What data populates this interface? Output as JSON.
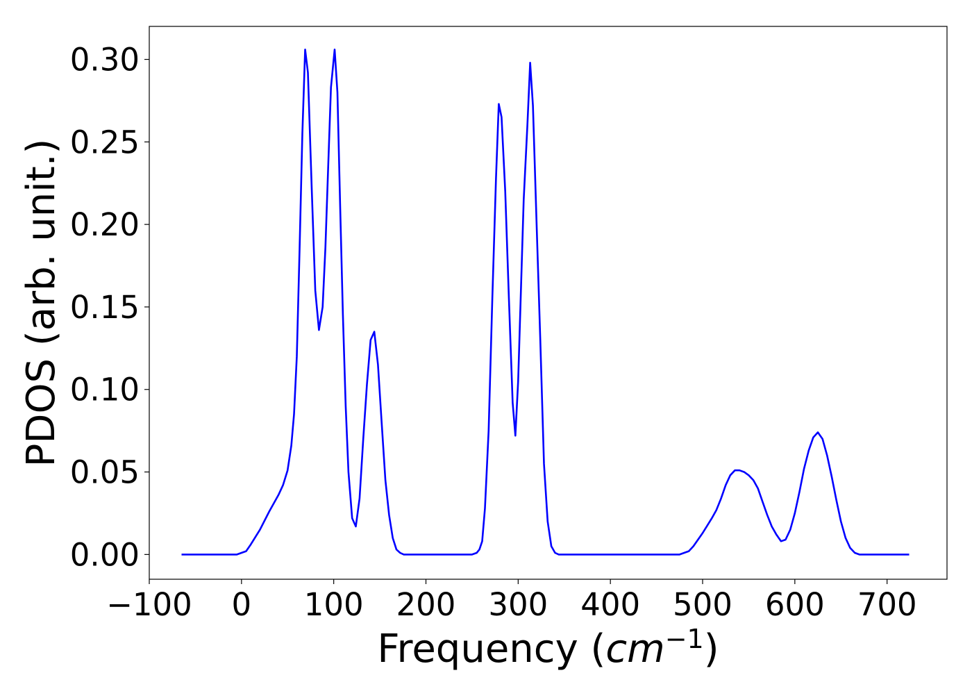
{
  "chart_data": {
    "type": "line",
    "title": "",
    "xlabel_prefix": "Frequency (",
    "xlabel_var": "cm",
    "xlabel_sup": "−1",
    "xlabel_suffix": ")",
    "ylabel": "PDOS (arb. unit.)",
    "xlim": [
      -100,
      765
    ],
    "ylim": [
      -0.015,
      0.32
    ],
    "grid": false,
    "legend": "none",
    "xticks": [
      -100,
      0,
      100,
      200,
      300,
      400,
      500,
      600,
      700
    ],
    "xtick_labels": [
      "−100",
      "0",
      "100",
      "200",
      "300",
      "400",
      "500",
      "600",
      "700"
    ],
    "yticks": [
      0.0,
      0.05,
      0.1,
      0.15,
      0.2,
      0.25,
      0.3
    ],
    "ytick_labels": [
      "0.00",
      "0.05",
      "0.10",
      "0.15",
      "0.20",
      "0.25",
      "0.30"
    ],
    "series": [
      {
        "color": "#0000ff",
        "x": [
          -65,
          -40,
          -20,
          -5,
          0,
          5,
          10,
          20,
          30,
          40,
          45,
          50,
          54,
          57,
          60,
          63,
          66,
          69,
          72,
          76,
          80,
          84,
          88,
          91,
          94,
          97,
          101,
          104,
          107,
          110,
          113,
          116,
          120,
          124,
          128,
          132,
          136,
          140,
          144,
          148,
          152,
          156,
          160,
          164,
          168,
          172,
          176,
          180,
          190,
          200,
          220,
          240,
          250,
          255,
          258,
          261,
          264,
          268,
          272,
          276,
          279,
          282,
          286,
          290,
          294,
          297,
          300,
          303,
          306,
          310,
          313,
          316,
          320,
          324,
          328,
          332,
          336,
          340,
          344,
          350,
          400,
          450,
          470,
          475,
          480,
          485,
          490,
          500,
          510,
          515,
          520,
          525,
          530,
          535,
          540,
          545,
          550,
          555,
          560,
          565,
          570,
          575,
          580,
          585,
          590,
          595,
          600,
          605,
          610,
          615,
          620,
          625,
          630,
          635,
          640,
          645,
          650,
          655,
          660,
          665,
          670,
          675,
          680,
          700,
          724
        ],
        "y": [
          0.0,
          0.0,
          0.0,
          0.0,
          0.001,
          0.002,
          0.006,
          0.015,
          0.026,
          0.036,
          0.042,
          0.051,
          0.066,
          0.085,
          0.12,
          0.185,
          0.255,
          0.306,
          0.292,
          0.224,
          0.16,
          0.136,
          0.15,
          0.186,
          0.235,
          0.283,
          0.306,
          0.28,
          0.21,
          0.145,
          0.09,
          0.05,
          0.022,
          0.017,
          0.034,
          0.07,
          0.103,
          0.13,
          0.135,
          0.115,
          0.08,
          0.045,
          0.024,
          0.01,
          0.003,
          0.001,
          0.0,
          0.0,
          0.0,
          0.0,
          0.0,
          0.0,
          0.0,
          0.001,
          0.003,
          0.008,
          0.028,
          0.075,
          0.155,
          0.228,
          0.273,
          0.265,
          0.22,
          0.155,
          0.092,
          0.072,
          0.105,
          0.16,
          0.215,
          0.26,
          0.298,
          0.272,
          0.2,
          0.13,
          0.055,
          0.02,
          0.005,
          0.001,
          0.0,
          0.0,
          0.0,
          0.0,
          0.0,
          0.0,
          0.001,
          0.002,
          0.005,
          0.013,
          0.022,
          0.027,
          0.034,
          0.042,
          0.048,
          0.051,
          0.051,
          0.05,
          0.048,
          0.045,
          0.04,
          0.032,
          0.024,
          0.017,
          0.012,
          0.008,
          0.009,
          0.015,
          0.025,
          0.038,
          0.052,
          0.063,
          0.071,
          0.074,
          0.07,
          0.06,
          0.047,
          0.033,
          0.02,
          0.01,
          0.004,
          0.001,
          0.0,
          0.0,
          0.0,
          0.0,
          0.0
        ]
      }
    ]
  }
}
